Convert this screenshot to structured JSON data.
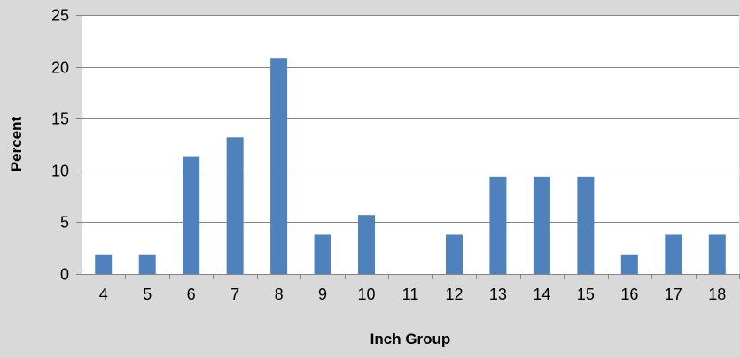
{
  "chart_data": {
    "type": "bar",
    "categories": [
      "4",
      "5",
      "6",
      "7",
      "8",
      "9",
      "10",
      "11",
      "12",
      "13",
      "14",
      "15",
      "16",
      "17",
      "18"
    ],
    "values": [
      1.9,
      1.9,
      11.3,
      13.2,
      20.8,
      3.8,
      5.7,
      0,
      3.8,
      9.4,
      9.4,
      9.4,
      1.9,
      3.8,
      3.8
    ],
    "xlabel": "Inch Group",
    "ylabel": "Percent",
    "ylim": [
      0,
      25
    ],
    "yticks": [
      0,
      5,
      10,
      15,
      20,
      25
    ],
    "grid": true,
    "legend": "none",
    "colors": {
      "bar": "#4f81bd",
      "plot_background": "#ffffff",
      "page_background": "#d9d9d9",
      "gridline": "#868686",
      "axis": "#868686"
    }
  }
}
